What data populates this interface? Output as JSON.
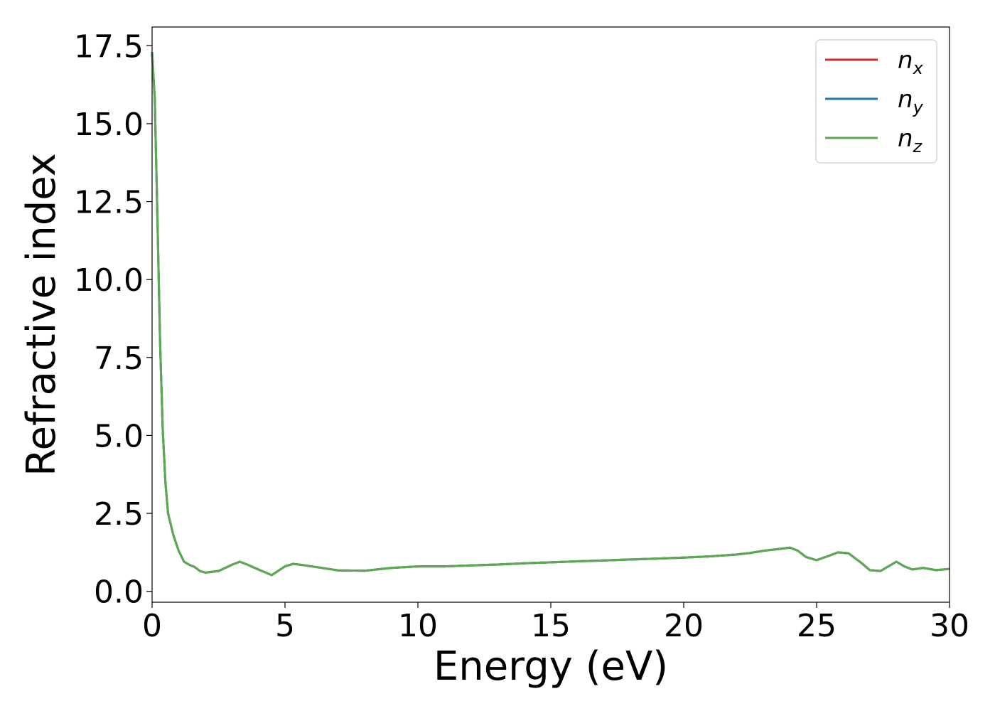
{
  "chart_data": {
    "type": "line",
    "xlabel": "Energy (eV)",
    "ylabel": "Refractive index",
    "xlim": [
      0,
      30
    ],
    "ylim": [
      -0.35,
      18.1
    ],
    "xticks": [
      0,
      5,
      10,
      15,
      20,
      25,
      30
    ],
    "xtick_labels": [
      "0",
      "5",
      "10",
      "15",
      "20",
      "25",
      "30"
    ],
    "yticks": [
      0.0,
      2.5,
      5.0,
      7.5,
      10.0,
      12.5,
      15.0,
      17.5
    ],
    "ytick_labels": [
      "0.0",
      "2.5",
      "5.0",
      "7.5",
      "10.0",
      "12.5",
      "15.0",
      "17.5"
    ],
    "grid": false,
    "legend_position": "top-right",
    "x": [
      0,
      0.1,
      0.2,
      0.3,
      0.4,
      0.5,
      0.6,
      0.8,
      1.0,
      1.2,
      1.4,
      1.6,
      1.8,
      2.0,
      2.5,
      3.0,
      3.3,
      3.6,
      4.0,
      4.5,
      5.0,
      5.3,
      5.6,
      6.0,
      7.0,
      8.0,
      9.0,
      10.0,
      11.0,
      12.0,
      13.0,
      14.0,
      15.0,
      16.0,
      17.0,
      18.0,
      19.0,
      20.0,
      21.0,
      22.0,
      22.5,
      23.0,
      23.5,
      24.0,
      24.3,
      24.6,
      25.0,
      25.5,
      25.8,
      26.2,
      26.7,
      27.0,
      27.4,
      27.8,
      28.0,
      28.3,
      28.6,
      29.0,
      29.5,
      30.0
    ],
    "series": [
      {
        "name": "n",
        "name_sub": "x",
        "color": "#d62728",
        "values": [
          17.3,
          15.8,
          12.0,
          8.0,
          5.2,
          3.5,
          2.5,
          1.8,
          1.3,
          0.95,
          0.85,
          0.78,
          0.65,
          0.6,
          0.65,
          0.85,
          0.95,
          0.85,
          0.7,
          0.52,
          0.8,
          0.88,
          0.85,
          0.8,
          0.67,
          0.66,
          0.75,
          0.8,
          0.8,
          0.83,
          0.86,
          0.9,
          0.93,
          0.96,
          0.99,
          1.02,
          1.05,
          1.08,
          1.12,
          1.18,
          1.23,
          1.3,
          1.35,
          1.4,
          1.3,
          1.1,
          1.0,
          1.15,
          1.25,
          1.22,
          0.9,
          0.68,
          0.65,
          0.85,
          0.95,
          0.8,
          0.7,
          0.75,
          0.68,
          0.72
        ]
      },
      {
        "name": "n",
        "name_sub": "y",
        "color": "#1f77b4",
        "values": [
          17.3,
          15.8,
          12.0,
          8.0,
          5.2,
          3.5,
          2.5,
          1.8,
          1.3,
          0.95,
          0.85,
          0.78,
          0.65,
          0.6,
          0.65,
          0.85,
          0.95,
          0.85,
          0.7,
          0.52,
          0.8,
          0.88,
          0.85,
          0.8,
          0.67,
          0.66,
          0.75,
          0.8,
          0.8,
          0.83,
          0.86,
          0.9,
          0.93,
          0.96,
          0.99,
          1.02,
          1.05,
          1.08,
          1.12,
          1.18,
          1.23,
          1.3,
          1.35,
          1.4,
          1.3,
          1.1,
          1.0,
          1.15,
          1.25,
          1.22,
          0.9,
          0.68,
          0.65,
          0.85,
          0.95,
          0.8,
          0.7,
          0.75,
          0.68,
          0.72
        ]
      },
      {
        "name": "n",
        "name_sub": "z",
        "color": "#5aab4f",
        "values": [
          17.3,
          15.8,
          12.0,
          8.0,
          5.2,
          3.5,
          2.5,
          1.8,
          1.3,
          0.95,
          0.85,
          0.78,
          0.65,
          0.6,
          0.65,
          0.85,
          0.95,
          0.85,
          0.7,
          0.52,
          0.8,
          0.88,
          0.85,
          0.8,
          0.67,
          0.66,
          0.75,
          0.8,
          0.8,
          0.83,
          0.86,
          0.9,
          0.93,
          0.96,
          0.99,
          1.02,
          1.05,
          1.08,
          1.12,
          1.18,
          1.23,
          1.3,
          1.35,
          1.4,
          1.3,
          1.1,
          1.0,
          1.15,
          1.25,
          1.22,
          0.9,
          0.68,
          0.65,
          0.85,
          0.95,
          0.8,
          0.7,
          0.75,
          0.68,
          0.72
        ]
      }
    ]
  }
}
